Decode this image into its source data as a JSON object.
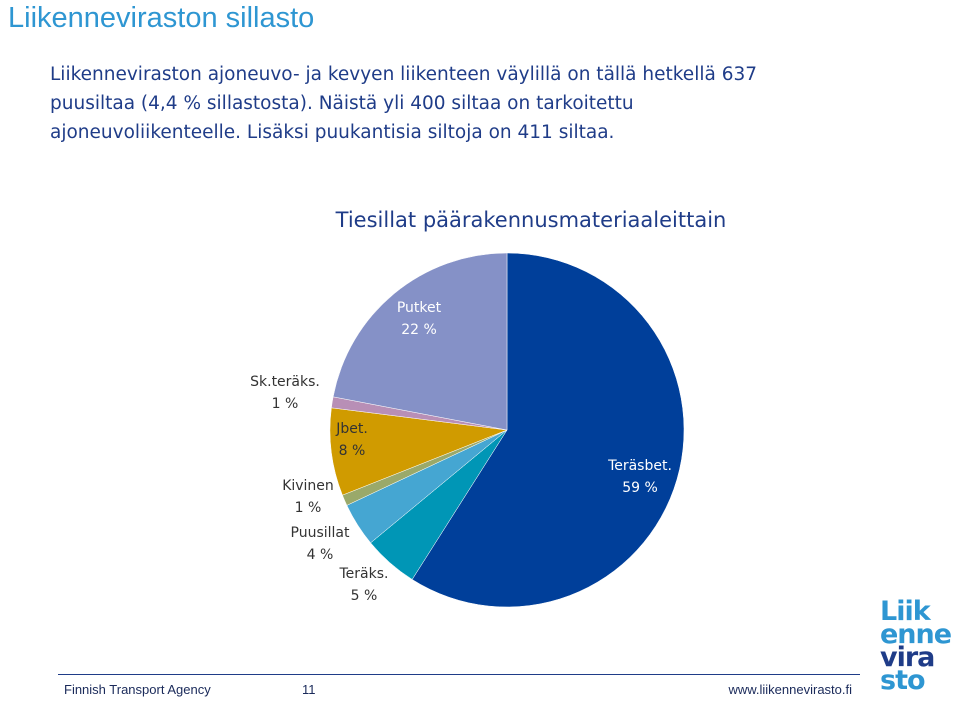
{
  "page": {
    "title": "Liikenneviraston sillasto",
    "intro_lines": [
      "Liikenneviraston ajoneuvo- ja kevyen liikenteen väylillä on tällä hetkellä 637",
      "puusiltaa (4,4 % sillastosta). Näistä yli 400 siltaa on tarkoitettu",
      "ajoneuvoliikenteelle. Lisäksi puukantisia siltoja on 411 siltaa."
    ]
  },
  "chart_data": {
    "type": "pie",
    "title": "Tiesillat päärakennusmateriaaleittain",
    "slices": [
      {
        "name": "Teräsbet.",
        "value": 59,
        "label": "59 %",
        "color": "#003f9a",
        "label_color": "#ffffff"
      },
      {
        "name": "Teräks.",
        "value": 5,
        "label": "5 %",
        "color": "#0096b6",
        "label_color": "#333333"
      },
      {
        "name": "Puusillat",
        "value": 4,
        "label": "4 %",
        "color": "#45a6d2",
        "label_color": "#333333"
      },
      {
        "name": "Kivinen",
        "value": 1,
        "label": "1 %",
        "color": "#9aa96a",
        "label_color": "#333333"
      },
      {
        "name": "Jbet.",
        "value": 8,
        "label": "8 %",
        "color": "#d09b00",
        "label_color": "#333333"
      },
      {
        "name": "Sk.teräks.",
        "value": 1,
        "label": "1 %",
        "color": "#b88fb6",
        "label_color": "#333333"
      },
      {
        "name": "Putket",
        "value": 22,
        "label": "22 %",
        "color": "#8591c7",
        "label_color": "#ffffff"
      }
    ]
  },
  "footer": {
    "organization": "Finnish Transport Agency",
    "page_number": "11",
    "website": "www.liikennevirasto.fi"
  },
  "logo": {
    "lines": [
      "Liik",
      "enne",
      "vira",
      "sto"
    ],
    "colors": [
      "#2e96d2",
      "#2e96d2",
      "#1f3c88",
      "#2e96d2"
    ]
  }
}
